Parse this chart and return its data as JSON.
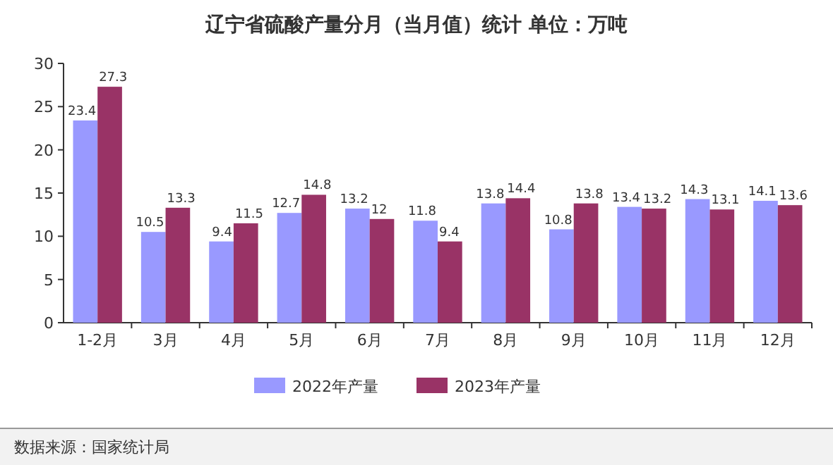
{
  "chart_data": {
    "type": "bar",
    "title": "辽宁省硫酸产量分月（当月值）统计  单位：万吨",
    "categories": [
      "1-2月",
      "3月",
      "4月",
      "5月",
      "6月",
      "7月",
      "8月",
      "9月",
      "10月",
      "11月",
      "12月"
    ],
    "series": [
      {
        "name": "2022年产量",
        "color": "#9999ff",
        "values": [
          23.4,
          10.5,
          9.4,
          12.7,
          13.2,
          11.8,
          13.8,
          10.8,
          13.4,
          14.3,
          14.1
        ]
      },
      {
        "name": "2023年产量",
        "color": "#993366",
        "values": [
          27.3,
          13.3,
          11.5,
          14.8,
          12,
          9.4,
          14.4,
          13.8,
          13.2,
          13.1,
          13.6
        ]
      }
    ],
    "ylim": [
      0,
      30
    ],
    "yticks": [
      0,
      5,
      10,
      15,
      20,
      25,
      30
    ],
    "data_labels": true,
    "legend": "bottom",
    "grid": false,
    "annotations": [
      "数据来源：国家统计局"
    ]
  }
}
